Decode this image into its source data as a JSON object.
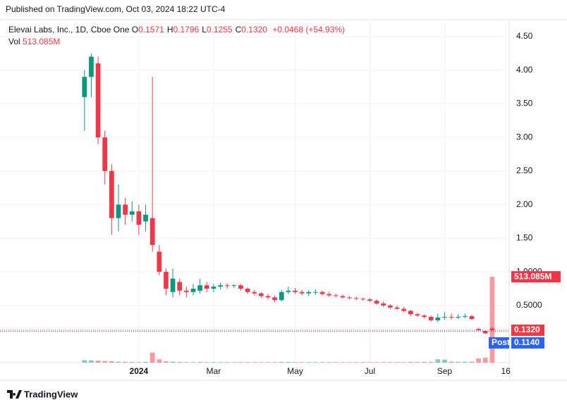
{
  "header": {
    "published": "Published on TradingView.com, Oct 03, 2024 18:22 UTC-4",
    "footer": "TradingView"
  },
  "chart_data": {
    "type": "candlestick",
    "title": "Elevai Labs, Inc., 1D, Cboe One",
    "ohlc_legend": {
      "labels": [
        "O",
        "H",
        "L",
        "C"
      ],
      "values": [
        "0.1571",
        "0.1796",
        "0.1255",
        "0.1320"
      ],
      "change": "+0.0468 (+54.93%)"
    },
    "volume_legend": {
      "label": "Vol",
      "value": "513.085M"
    },
    "up_color": "#089981",
    "down_color": "#f23645",
    "categories": [
      null,
      null,
      null,
      null,
      null,
      null,
      null,
      null,
      "2024",
      null,
      null,
      null,
      null,
      null,
      null,
      null,
      null,
      null,
      null,
      "Mar",
      null,
      null,
      null,
      null,
      null,
      null,
      null,
      null,
      null,
      null,
      null,
      "May",
      null,
      null,
      null,
      null,
      null,
      null,
      null,
      null,
      null,
      null,
      "Jul",
      null,
      null,
      null,
      null,
      null,
      null,
      null,
      null,
      null,
      null,
      "Sep",
      null,
      null,
      null,
      null,
      null,
      null,
      null,
      null,
      "16"
    ],
    "open": [
      3.6,
      3.9,
      4.1,
      3.0,
      2.5,
      1.8,
      2.0,
      1.85,
      1.9,
      1.75,
      1.8,
      1.3,
      1.0,
      0.7,
      0.85,
      0.72,
      0.7,
      0.72,
      0.8,
      0.75,
      0.78,
      0.8,
      0.79,
      0.8,
      0.75,
      0.7,
      0.68,
      0.64,
      0.62,
      0.58,
      0.7,
      0.72,
      0.7,
      0.68,
      0.69,
      0.7,
      0.67,
      0.65,
      0.64,
      0.62,
      0.61,
      0.6,
      0.59,
      0.57,
      0.53,
      0.5,
      0.47,
      0.45,
      0.42,
      0.37,
      0.35,
      0.33,
      0.28,
      0.32,
      0.33,
      0.32,
      0.33,
      0.34,
      0.15,
      0.12,
      0.1571,
      null,
      null
    ],
    "high": [
      4.0,
      4.25,
      4.2,
      3.1,
      2.6,
      2.3,
      2.1,
      2.05,
      2.0,
      2.0,
      3.9,
      1.4,
      1.05,
      1.05,
      0.9,
      0.78,
      0.82,
      0.9,
      0.85,
      0.82,
      0.84,
      0.83,
      0.82,
      0.82,
      0.77,
      0.73,
      0.7,
      0.67,
      0.65,
      0.73,
      0.78,
      0.76,
      0.73,
      0.73,
      0.74,
      0.72,
      0.7,
      0.68,
      0.66,
      0.64,
      0.63,
      0.62,
      0.61,
      0.59,
      0.56,
      0.52,
      0.5,
      0.48,
      0.44,
      0.39,
      0.37,
      0.35,
      0.38,
      0.4,
      0.38,
      0.37,
      0.38,
      0.36,
      0.17,
      0.13,
      0.1796,
      null,
      null
    ],
    "low": [
      3.1,
      3.6,
      2.9,
      2.3,
      1.55,
      1.6,
      1.7,
      1.75,
      1.55,
      1.6,
      1.3,
      0.95,
      0.65,
      0.62,
      0.65,
      0.62,
      0.65,
      0.68,
      0.7,
      0.7,
      0.74,
      0.75,
      0.76,
      0.72,
      0.67,
      0.65,
      0.61,
      0.59,
      0.55,
      0.56,
      0.67,
      0.67,
      0.65,
      0.64,
      0.66,
      0.65,
      0.63,
      0.62,
      0.6,
      0.59,
      0.58,
      0.57,
      0.55,
      0.51,
      0.48,
      0.45,
      0.43,
      0.4,
      0.34,
      0.33,
      0.31,
      0.26,
      0.25,
      0.29,
      0.29,
      0.3,
      0.31,
      0.28,
      0.12,
      0.08,
      0.1255,
      null,
      null
    ],
    "close": [
      3.9,
      4.2,
      3.0,
      2.5,
      1.8,
      2.0,
      1.85,
      1.9,
      1.7,
      1.85,
      1.4,
      1.0,
      0.75,
      0.9,
      0.72,
      0.7,
      0.75,
      0.8,
      0.75,
      0.78,
      0.8,
      0.79,
      0.8,
      0.75,
      0.7,
      0.68,
      0.64,
      0.62,
      0.58,
      0.7,
      0.72,
      0.7,
      0.68,
      0.7,
      0.7,
      0.67,
      0.65,
      0.64,
      0.62,
      0.61,
      0.6,
      0.59,
      0.57,
      0.53,
      0.5,
      0.47,
      0.45,
      0.42,
      0.37,
      0.35,
      0.33,
      0.28,
      0.32,
      0.33,
      0.32,
      0.33,
      0.34,
      0.3,
      0.13,
      0.085,
      0.132,
      null,
      null
    ],
    "volume": [
      15000000,
      14000000,
      12000000,
      10000000,
      9000000,
      6000000,
      5000000,
      4000000,
      4000000,
      5000000,
      60000000,
      20000000,
      8000000,
      6000000,
      4000000,
      3000000,
      3000000,
      4000000,
      3000000,
      3000000,
      3000000,
      3000000,
      3000000,
      3000000,
      3000000,
      3000000,
      3000000,
      3000000,
      3000000,
      4000000,
      4000000,
      3000000,
      3000000,
      3000000,
      3000000,
      3000000,
      3000000,
      3000000,
      3000000,
      3000000,
      3000000,
      3000000,
      3000000,
      3000000,
      3000000,
      3000000,
      3000000,
      3000000,
      4000000,
      4000000,
      4000000,
      5000000,
      20000000,
      18000000,
      6000000,
      5000000,
      5000000,
      6000000,
      25000000,
      30000000,
      513085000,
      null,
      null
    ],
    "volume_labels": [
      null,
      null,
      null,
      null,
      null,
      null,
      null,
      null,
      null,
      null,
      null,
      null,
      null,
      null,
      null,
      null,
      null,
      null,
      null,
      null,
      null,
      null,
      null,
      null,
      null,
      null,
      null,
      null,
      null,
      null,
      null,
      null,
      null,
      null,
      null,
      null,
      null,
      null,
      null,
      null,
      null,
      null,
      null,
      null,
      null,
      null,
      null,
      null,
      null,
      null,
      null,
      null,
      null,
      null,
      null,
      null,
      null,
      null,
      null,
      null,
      "513.085M",
      null,
      null
    ],
    "vlim": [
      0,
      2050000000
    ],
    "ylim": [
      -0.35,
      4.75
    ],
    "yticks": [
      {
        "value": 0.5,
        "label": "0.5000"
      },
      {
        "value": 1,
        "label": "1.0000"
      },
      {
        "value": 1.5,
        "label": "1.50"
      },
      {
        "value": 2,
        "label": "2.00"
      },
      {
        "value": 2.5,
        "label": "2.50"
      },
      {
        "value": 3,
        "label": "3.00"
      },
      {
        "value": 3.5,
        "label": "3.50"
      },
      {
        "value": 4,
        "label": "4.00"
      },
      {
        "value": 4.5,
        "label": "4.50"
      }
    ],
    "last_price": {
      "value": 0.132,
      "label": "0.1320",
      "color": "#f23645"
    },
    "post_price": {
      "value": 0.114,
      "label": "0.1140",
      "tag": "Post",
      "color": "#2962ff"
    },
    "grid": true
  }
}
